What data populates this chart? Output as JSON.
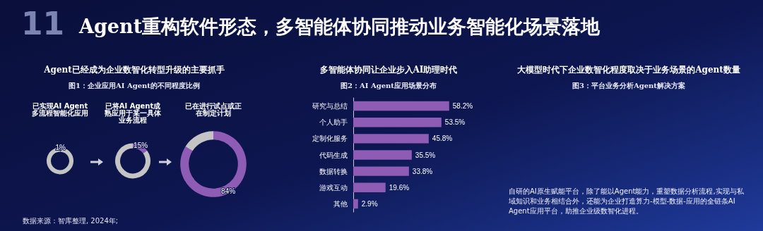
{
  "chart_data": [
    {
      "type": "other",
      "title": "Agent重构软件形态，多智能体协同推动业务智能化场景落地",
      "annotations": [
        "11"
      ]
    },
    {
      "type": "other",
      "title": "Agent已经成为企业数智化转型升级的主要抓手",
      "subtitle": "图1：企业应用AI Agent的不同程度比例",
      "annotations": [
        "数据来源：智库整理, 2024年;"
      ]
    },
    {
      "type": "donut",
      "title": "已实现AI Agent多流程智能化应用",
      "categories": [
        null,
        null
      ],
      "values": [
        1,
        99
      ],
      "colors": [
        "#8e5bb5",
        "#c4c4c4"
      ],
      "value_labels": [
        "1%",
        null
      ]
    },
    {
      "type": "donut",
      "title": "已将AI Agent成熟应用于某一具体业务流程",
      "categories": [
        null,
        null
      ],
      "values": [
        15,
        85
      ],
      "colors": [
        "#8e5bb5",
        "#c4c4c4"
      ],
      "value_labels": [
        "15%",
        null
      ]
    },
    {
      "type": "donut",
      "title": "已在进行试点或正在制定计划",
      "categories": [
        null,
        null
      ],
      "values": [
        84,
        16
      ],
      "colors": [
        "#8e5bb5",
        "#c4c4c4"
      ],
      "value_labels": [
        "84%",
        null
      ]
    },
    {
      "type": "bar",
      "orientation": "horizontal",
      "title": "多智能体协同让企业步入AI助理时代",
      "subtitle": "图2：AI Agent应用场景分布",
      "categories": [
        "研究与总结",
        "个人助手",
        "定制化服务",
        "代码生成",
        "数据转换",
        "游戏互动",
        "其他"
      ],
      "values": [
        58.2,
        53.5,
        45.8,
        35.5,
        33.8,
        19.6,
        2.9
      ],
      "color": "#8e5bb5",
      "value_labels": [
        "58.2%",
        "53.5%",
        "45.8%",
        "35.5%",
        "33.8%",
        "19.6%",
        "2.9%"
      ]
    },
    {
      "type": "other",
      "title": "大模型时代下企业数智化程度取决于业务场景的Agent数量",
      "subtitle": "图3：平台业务分析Agent解决方案",
      "annotations": [
        "自研的AI原生赋能平台，除了能以Agent能力，重塑数据分析流程,实现与私域知识和业务相结合外，还能为企业打造算力-模型-数据-应用的全链条AI Agent应用平台，助推企业级数智化进程。"
      ]
    }
  ]
}
